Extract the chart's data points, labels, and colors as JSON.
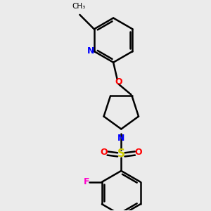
{
  "bg_color": "#ebebeb",
  "bond_color": "#000000",
  "N_color": "#0000ff",
  "O_color": "#ff0000",
  "S_color": "#cccc00",
  "F_color": "#ff00cc",
  "line_width": 1.8,
  "figsize": [
    3.0,
    3.0
  ],
  "dpi": 100,
  "xlim": [
    -2.5,
    2.5
  ],
  "ylim": [
    -4.2,
    3.8
  ]
}
